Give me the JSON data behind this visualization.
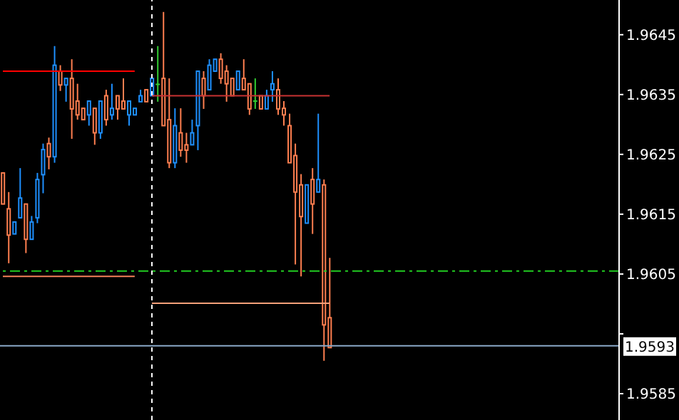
{
  "chart_data": {
    "type": "candlestick",
    "categories": [
      null,
      null,
      null,
      null,
      null,
      null,
      null,
      null,
      null,
      null,
      null,
      null,
      null,
      null,
      null,
      null,
      null,
      null,
      null,
      null,
      null,
      null,
      null,
      null,
      null,
      null,
      null,
      null,
      null,
      null,
      null,
      null,
      null,
      null,
      null,
      null,
      null,
      null,
      null,
      null,
      null,
      null,
      null,
      null,
      null,
      null,
      null,
      null,
      null,
      null,
      null,
      null,
      null,
      null,
      null,
      null,
      null,
      null,
      null,
      null,
      null,
      null,
      null,
      null,
      null,
      null,
      null,
      null,
      null,
      null,
      null,
      null,
      null,
      null,
      null,
      null,
      null,
      null,
      null,
      null,
      null,
      null,
      null,
      null,
      null,
      null,
      null,
      null,
      null,
      null,
      null,
      null,
      null,
      null,
      null,
      null,
      null,
      null,
      null,
      null,
      null,
      null,
      null,
      null,
      null,
      null,
      null,
      null
    ],
    "ohlc": [
      [
        1.96219,
        1.96219,
        1.96167,
        1.96167
      ],
      [
        1.96159,
        1.96187,
        1.96068,
        1.96115
      ],
      [
        1.96117,
        1.96137,
        1.96117,
        1.96137
      ],
      [
        1.96144,
        1.96227,
        1.96144,
        1.96177
      ],
      [
        1.96167,
        1.96167,
        1.96085,
        1.96108
      ],
      [
        1.96108,
        1.96147,
        1.96108,
        1.96137
      ],
      [
        1.96144,
        1.96219,
        1.96135,
        1.96208
      ],
      [
        1.96216,
        1.96268,
        1.96185,
        1.96258
      ],
      [
        1.96268,
        1.96278,
        1.96225,
        1.96246
      ],
      [
        1.96246,
        1.96431,
        1.96236,
        1.96399
      ],
      [
        1.96389,
        1.96399,
        1.96356,
        1.96366
      ],
      [
        1.96366,
        1.96377,
        1.96338,
        1.96377
      ],
      [
        1.96377,
        1.96409,
        1.96276,
        1.96326
      ],
      [
        1.96339,
        1.96368,
        1.96308,
        1.96316
      ],
      [
        1.96327,
        1.96327,
        1.96308,
        1.96308
      ],
      [
        1.96316,
        1.96339,
        1.96298,
        1.96339
      ],
      [
        1.96327,
        1.96327,
        1.96266,
        1.96286
      ],
      [
        1.96286,
        1.96339,
        1.96276,
        1.96339
      ],
      [
        1.96348,
        1.96358,
        1.96298,
        1.96308
      ],
      [
        1.96316,
        1.96368,
        1.96308,
        1.96327
      ],
      [
        1.96348,
        1.96348,
        1.96308,
        1.96326
      ],
      [
        1.96339,
        1.96377,
        1.96326,
        1.96326
      ],
      [
        1.96316,
        1.96339,
        1.96298,
        1.96339
      ],
      [
        1.96316,
        1.96327,
        1.96316,
        1.96327
      ],
      [
        1.96338,
        1.96358,
        1.96338,
        1.96348
      ],
      [
        1.96358,
        1.96358,
        1.96338,
        1.96338
      ],
      [
        1.96348,
        1.96377,
        1.96348,
        1.96377
      ],
      [
        1.96367,
        1.96431,
        1.96338,
        1.96367
      ],
      [
        1.96377,
        1.96488,
        1.96298,
        1.96298
      ],
      [
        1.96308,
        1.96377,
        1.96227,
        1.96236
      ],
      [
        1.96236,
        1.96327,
        1.96227,
        1.96298
      ],
      [
        1.96286,
        1.96327,
        1.96246,
        1.96257
      ],
      [
        1.96266,
        1.96286,
        1.96236,
        1.96257
      ],
      [
        1.96266,
        1.96308,
        1.96266,
        1.96286
      ],
      [
        1.96298,
        1.96389,
        1.96257,
        1.96389
      ],
      [
        1.96377,
        1.96389,
        1.96326,
        1.96348
      ],
      [
        1.96358,
        1.96409,
        1.96358,
        1.96399
      ],
      [
        1.96389,
        1.96409,
        1.96389,
        1.96409
      ],
      [
        1.96409,
        1.96419,
        1.96368,
        1.96377
      ],
      [
        1.96389,
        1.96399,
        1.96338,
        1.96368
      ],
      [
        1.96377,
        1.96377,
        1.96348,
        1.96348
      ],
      [
        1.96358,
        1.96389,
        1.96358,
        1.96389
      ],
      [
        1.96377,
        1.96409,
        1.96358,
        1.96358
      ],
      [
        1.96368,
        1.96368,
        1.96316,
        1.96326
      ],
      [
        1.96339,
        1.96377,
        1.96326,
        1.96339
      ],
      [
        1.96348,
        1.96348,
        1.96326,
        1.96326
      ],
      [
        1.96326,
        1.96358,
        1.96326,
        1.96348
      ],
      [
        1.96358,
        1.96389,
        1.96338,
        1.96368
      ],
      [
        1.96358,
        1.96377,
        1.96316,
        1.96326
      ],
      [
        1.96327,
        1.96339,
        1.96298,
        1.96316
      ],
      [
        1.96298,
        1.96318,
        1.96236,
        1.96236
      ],
      [
        1.96248,
        1.96268,
        1.96066,
        1.96187
      ],
      [
        1.96199,
        1.96217,
        1.96046,
        1.96146
      ],
      [
        1.96135,
        1.96199,
        1.96135,
        1.96199
      ],
      [
        1.96208,
        1.96227,
        1.96117,
        1.96167
      ],
      [
        1.96187,
        1.96318,
        1.96187,
        1.96208
      ],
      [
        1.96199,
        1.96208,
        1.95905,
        1.95965
      ],
      [
        1.95977,
        1.96077,
        1.95927,
        1.95927
      ],
      null,
      null,
      null,
      null,
      null,
      null,
      null,
      null,
      null,
      null,
      null,
      null,
      null,
      null,
      null,
      null,
      null,
      null,
      null,
      null,
      null,
      null,
      null,
      null,
      null,
      null,
      null,
      null,
      null,
      null,
      null,
      null,
      null,
      null,
      null,
      null,
      null,
      null,
      null,
      null,
      null,
      null,
      null,
      null,
      null,
      null,
      null,
      null,
      null,
      null
    ],
    "colors": [
      "#ff7f50",
      "#ff7f50",
      "#1e90ff",
      "#1e90ff",
      "#ff7f50",
      "#1e90ff",
      "#1e90ff",
      "#1e90ff",
      "#ff7f50",
      "#1e90ff",
      "#ff7f50",
      "#1e90ff",
      "#ff7f50",
      "#ff7f50",
      "#ff7f50",
      "#1e90ff",
      "#ff7f50",
      "#1e90ff",
      "#ff7f50",
      "#1e90ff",
      "#ff7f50",
      "#ff7f50",
      "#1e90ff",
      "#1e90ff",
      "#1e90ff",
      "#ff7f50",
      "#1e90ff",
      "#32cd32",
      "#ff7f50",
      "#ff7f50",
      "#1e90ff",
      "#ff7f50",
      "#ff7f50",
      "#1e90ff",
      "#1e90ff",
      "#ff7f50",
      "#1e90ff",
      "#1e90ff",
      "#ff7f50",
      "#ff7f50",
      "#ff7f50",
      "#1e90ff",
      "#ff7f50",
      "#ff7f50",
      "#32cd32",
      "#ff7f50",
      "#1e90ff",
      "#1e90ff",
      "#ff7f50",
      "#ff7f50",
      "#ff7f50",
      "#ff7f50",
      "#ff7f50",
      "#1e90ff",
      "#ff7f50",
      "#1e90ff",
      "#ff7f50",
      "#ff7f50",
      null,
      null,
      null,
      null,
      null,
      null,
      null,
      null,
      null,
      null,
      null,
      null,
      null,
      null,
      null,
      null,
      null,
      null,
      null,
      null,
      null,
      null,
      null,
      null,
      null,
      null,
      null,
      null,
      null,
      null,
      null,
      null,
      null,
      null,
      null,
      null,
      null,
      null,
      null,
      null,
      null,
      null,
      null,
      null,
      null,
      null,
      null,
      null,
      null,
      null
    ],
    "series": [
      {
        "type": "line",
        "color": "#ff0000",
        "values": [
          1.96389,
          1.96389,
          1.96389,
          1.96389,
          1.96389,
          1.96389,
          1.96389,
          1.96389,
          1.96389,
          1.96389,
          1.96389,
          1.96389,
          1.96389,
          1.96389,
          1.96389,
          1.96389,
          1.96389,
          1.96389,
          1.96389,
          1.96389,
          1.96389,
          1.96389,
          1.96389,
          1.96389,
          null,
          null,
          null,
          null,
          null,
          null,
          null,
          null,
          null,
          null,
          null,
          null,
          null,
          null,
          null,
          null,
          null,
          null,
          null,
          null,
          null,
          null,
          null,
          null,
          null,
          null,
          null,
          null,
          null,
          null,
          null,
          null,
          null,
          null,
          null,
          null,
          null,
          null,
          null,
          null,
          null,
          null,
          null,
          null,
          null,
          null,
          null,
          null,
          null,
          null,
          null,
          null,
          null,
          null,
          null,
          null,
          null,
          null,
          null,
          null,
          null,
          null,
          null,
          null,
          null,
          null,
          null,
          null,
          null,
          null,
          null,
          null,
          null,
          null,
          null,
          null,
          null,
          null,
          null,
          null,
          null,
          null,
          null,
          null
        ]
      },
      {
        "type": "line",
        "color": "#f4805a",
        "values": [
          1.96046,
          1.96046,
          1.96046,
          1.96046,
          1.96046,
          1.96046,
          1.96046,
          1.96046,
          1.96046,
          1.96046,
          1.96046,
          1.96046,
          1.96046,
          1.96046,
          1.96046,
          1.96046,
          1.96046,
          1.96046,
          1.96046,
          1.96046,
          1.96046,
          1.96046,
          1.96046,
          1.96046,
          null,
          null,
          null,
          null,
          null,
          null,
          null,
          null,
          null,
          null,
          null,
          null,
          null,
          null,
          null,
          null,
          null,
          null,
          null,
          null,
          null,
          null,
          null,
          null,
          null,
          null,
          null,
          null,
          null,
          null,
          null,
          null,
          null,
          null,
          null,
          null,
          null,
          null,
          null,
          null,
          null,
          null,
          null,
          null,
          null,
          null,
          null,
          null,
          null,
          null,
          null,
          null,
          null,
          null,
          null,
          null,
          null,
          null,
          null,
          null,
          null,
          null,
          null,
          null,
          null,
          null,
          null,
          null,
          null,
          null,
          null,
          null,
          null,
          null,
          null,
          null,
          null,
          null,
          null,
          null,
          null,
          null,
          null,
          null
        ]
      },
      {
        "type": "line",
        "color": "#c83232",
        "values": [
          null,
          null,
          null,
          null,
          null,
          null,
          null,
          null,
          null,
          null,
          null,
          null,
          null,
          null,
          null,
          null,
          null,
          null,
          null,
          null,
          null,
          null,
          null,
          null,
          null,
          null,
          1.96348,
          1.96348,
          1.96348,
          1.96348,
          1.96348,
          1.96348,
          1.96348,
          1.96348,
          1.96348,
          1.96348,
          1.96348,
          1.96348,
          1.96348,
          1.96348,
          1.96348,
          1.96348,
          1.96348,
          1.96348,
          1.96348,
          1.96348,
          1.96348,
          1.96348,
          1.96348,
          1.96348,
          1.96348,
          1.96348,
          1.96348,
          1.96348,
          1.96348,
          1.96348,
          1.96348,
          1.96348,
          null,
          null,
          null,
          null,
          null,
          null,
          null,
          null,
          null,
          null,
          null,
          null,
          null,
          null,
          null,
          null,
          null,
          null,
          null,
          null,
          null,
          null,
          null,
          null,
          null,
          null,
          null,
          null,
          null,
          null,
          null,
          null,
          null,
          null,
          null,
          null,
          null,
          null,
          null,
          null,
          null,
          null,
          null,
          null,
          null,
          null,
          null,
          null,
          null,
          null
        ]
      },
      {
        "type": "line",
        "color": "#f4a07a",
        "values": [
          null,
          null,
          null,
          null,
          null,
          null,
          null,
          null,
          null,
          null,
          null,
          null,
          null,
          null,
          null,
          null,
          null,
          null,
          null,
          null,
          null,
          null,
          null,
          null,
          null,
          null,
          1.96001,
          1.96001,
          1.96001,
          1.96001,
          1.96001,
          1.96001,
          1.96001,
          1.96001,
          1.96001,
          1.96001,
          1.96001,
          1.96001,
          1.96001,
          1.96001,
          1.96001,
          1.96001,
          1.96001,
          1.96001,
          1.96001,
          1.96001,
          1.96001,
          1.96001,
          1.96001,
          1.96001,
          1.96001,
          1.96001,
          1.96001,
          1.96001,
          1.96001,
          1.96001,
          1.96001,
          1.96001,
          null,
          null,
          null,
          null,
          null,
          null,
          null,
          null,
          null,
          null,
          null,
          null,
          null,
          null,
          null,
          null,
          null,
          null,
          null,
          null,
          null,
          null,
          null,
          null,
          null,
          null,
          null,
          null,
          null,
          null,
          null,
          null,
          null,
          null,
          null,
          null,
          null,
          null,
          null,
          null,
          null,
          null,
          null,
          null,
          null,
          null,
          null,
          null,
          null,
          null
        ]
      }
    ],
    "ref_lines": [
      {
        "axis": "y",
        "value": 1.96055,
        "color": "#22cc22",
        "line_style": "dashed"
      },
      {
        "axis": "y",
        "value": 1.9593,
        "label": "1.9593",
        "color": "#8aa8c8"
      }
    ],
    "ylim": [
      1.95806,
      1.96508
    ],
    "yticks": [
      1.9585,
      {
        "value": 1.9595,
        "label": null
      },
      1.9605,
      1.9615,
      1.9625,
      1.9635,
      1.9645
    ],
    "tick_labels": "y"
  }
}
